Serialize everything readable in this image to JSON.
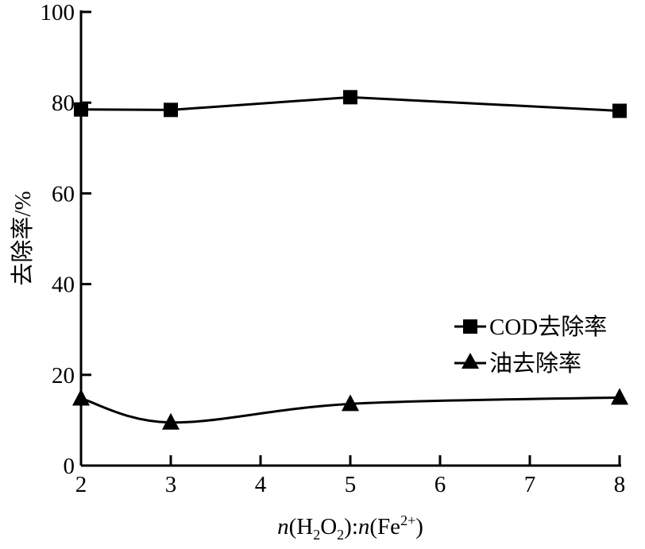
{
  "chart_data": {
    "type": "line",
    "title": "",
    "xlabel_parts": {
      "n1": "n",
      "open1": "(H",
      "sub2": "2",
      "o": "O",
      "sub2b": "2",
      "close1": ")",
      "colon": ":",
      "n2": "n",
      "open2": "(Fe",
      "sup": "2+",
      "close2": ")"
    },
    "xlabel": "n(H2O2):n(Fe2+)",
    "ylabel": "去除率/%",
    "xlim": [
      2,
      8
    ],
    "ylim": [
      0,
      100
    ],
    "xticks": [
      "2",
      "3",
      "4",
      "5",
      "6",
      "7",
      "8"
    ],
    "yticks": [
      "0",
      "20",
      "40",
      "60",
      "80",
      "100"
    ],
    "grid": false,
    "legend_position": "right-middle",
    "series": [
      {
        "name": "COD去除率",
        "marker": "square",
        "smooth": false,
        "x": [
          2,
          3,
          5,
          8
        ],
        "values": [
          78.5,
          78.4,
          81.2,
          78.2
        ]
      },
      {
        "name": "油去除率",
        "marker": "triangle",
        "smooth": true,
        "x": [
          2,
          3,
          5,
          8
        ],
        "values": [
          14.8,
          9.5,
          13.6,
          15.0
        ]
      }
    ],
    "colors": {
      "line": "#000000"
    }
  }
}
